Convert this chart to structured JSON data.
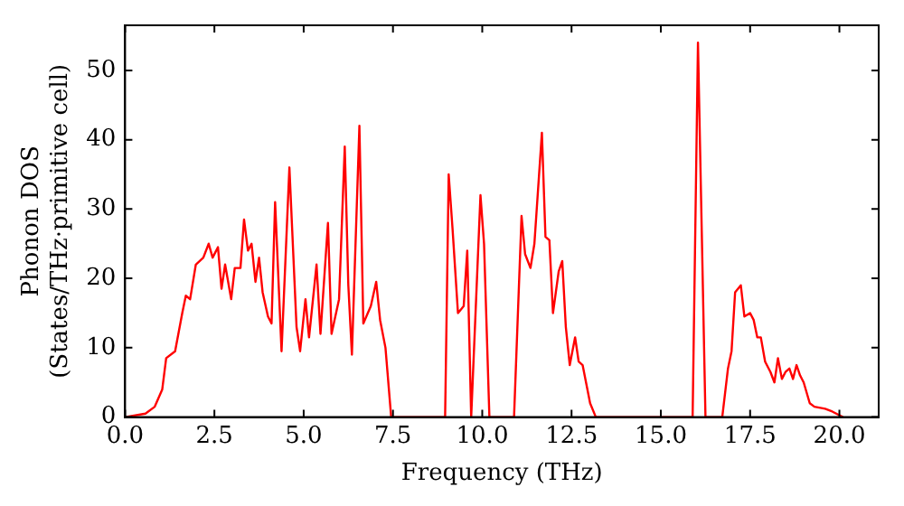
{
  "chart_data": {
    "type": "line",
    "xlabel": "Frequency (THz)",
    "ylabel": "Phonon DOS\n(States/THz·primitive cell)",
    "x": [
      0,
      0.57,
      0.83,
      1.04,
      1.15,
      1.4,
      1.6,
      1.7,
      1.82,
      1.98,
      2.19,
      2.34,
      2.45,
      2.6,
      2.7,
      2.8,
      2.97,
      3.07,
      3.23,
      3.33,
      3.44,
      3.54,
      3.65,
      3.75,
      3.85,
      4.0,
      4.1,
      4.2,
      4.38,
      4.6,
      4.8,
      4.9,
      5.05,
      5.15,
      5.36,
      5.47,
      5.68,
      5.78,
      5.99,
      6.15,
      6.25,
      6.35,
      6.56,
      6.67,
      6.88,
      7.03,
      7.14,
      7.29,
      7.45,
      8.96,
      9.06,
      9.17,
      9.32,
      9.48,
      9.58,
      9.69,
      9.95,
      10.05,
      10.2,
      10.89,
      11.1,
      11.2,
      11.35,
      11.46,
      11.67,
      11.77,
      11.88,
      11.98,
      12.14,
      12.24,
      12.34,
      12.45,
      12.6,
      12.7,
      12.81,
      13.02,
      13.18,
      15.89,
      16.04,
      16.25,
      16.72,
      16.88,
      16.98,
      17.08,
      17.24,
      17.34,
      17.5,
      17.6,
      17.7,
      17.8,
      17.92,
      18.07,
      18.18,
      18.28,
      18.39,
      18.49,
      18.6,
      18.7,
      18.8,
      18.9,
      19.0,
      19.17,
      19.3,
      19.6,
      19.8,
      20.1
    ],
    "series": [
      {
        "color": "#ff0000",
        "values": [
          0,
          0.5,
          1.5,
          4,
          8.5,
          9.5,
          15,
          17.5,
          17,
          22,
          23,
          25,
          23,
          24.5,
          18.5,
          22,
          17,
          21.5,
          21.5,
          28.5,
          24,
          25,
          19.5,
          23,
          18,
          14.5,
          13.5,
          31,
          9.5,
          36,
          13,
          9.5,
          17,
          11.5,
          22,
          12,
          28,
          12,
          17,
          39,
          19,
          9,
          42,
          13.5,
          16,
          19.5,
          14,
          10,
          0,
          0,
          35,
          27,
          15,
          16,
          24,
          0,
          32,
          25,
          0,
          0,
          29,
          23.5,
          21.5,
          25,
          41,
          26,
          25.5,
          15,
          21,
          22.5,
          13,
          7.5,
          11.5,
          8,
          7.5,
          2,
          0,
          0,
          54,
          0,
          0,
          7,
          9.5,
          18,
          19,
          14.5,
          15,
          14,
          11.5,
          11.5,
          8,
          6.5,
          5,
          8.5,
          5.5,
          6.5,
          7,
          5.5,
          7.5,
          6,
          5,
          2,
          1.5,
          1.2,
          0.8,
          0
        ]
      }
    ],
    "xlim": [
      0,
      21.1
    ],
    "ylim": [
      0,
      56.5
    ],
    "xticks": [
      {
        "value": 0,
        "label": "0.0"
      },
      {
        "value": 2.5,
        "label": "2.5"
      },
      {
        "value": 5,
        "label": "5.0"
      },
      {
        "value": 7.5,
        "label": "7.5"
      },
      {
        "value": 10,
        "label": "10.0"
      },
      {
        "value": 12.5,
        "label": "12.5"
      },
      {
        "value": 15,
        "label": "15.0"
      },
      {
        "value": 17.5,
        "label": "17.5"
      },
      {
        "value": 20,
        "label": "20.0"
      }
    ],
    "yticks": [
      0,
      10,
      20,
      30,
      40,
      50
    ],
    "grid": false,
    "legend": false,
    "marker": "none",
    "line_style": "solid"
  }
}
